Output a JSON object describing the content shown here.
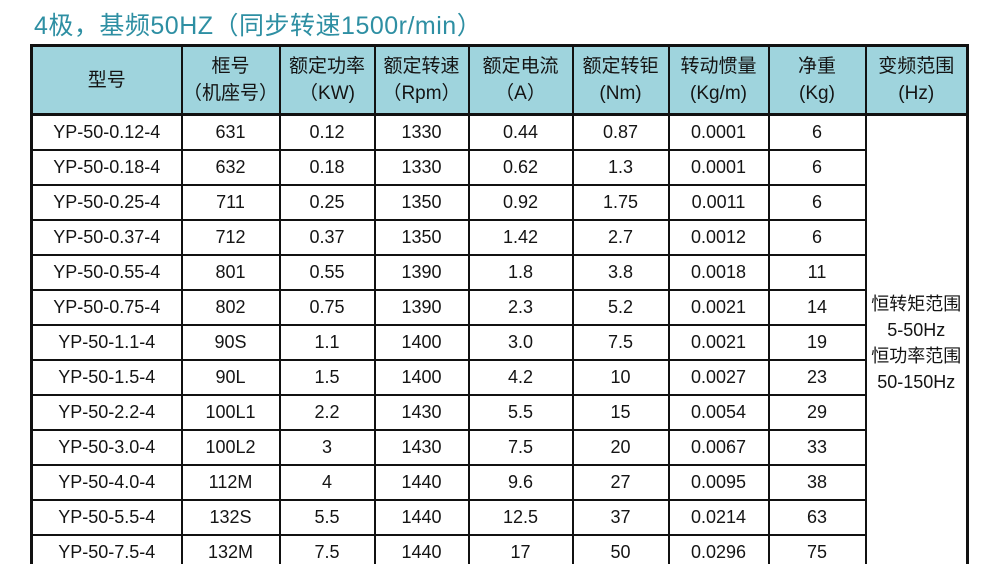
{
  "title": "4极，基频50HZ（同步转速1500r/min）",
  "colors": {
    "title_text": "#2e8fa3",
    "header_background": "#9fd4dd",
    "border": "#111111",
    "body_text": "#141414"
  },
  "table": {
    "columns": [
      {
        "label": "型号",
        "unit": ""
      },
      {
        "label": "框号",
        "unit": "（机座号）"
      },
      {
        "label": "额定功率",
        "unit": "（KW)"
      },
      {
        "label": "额定转速",
        "unit": "（Rpm）"
      },
      {
        "label": "额定电流",
        "unit": "（A）"
      },
      {
        "label": "额定转钜",
        "unit": "(Nm)"
      },
      {
        "label": "转动惯量",
        "unit": "(Kg/m)"
      },
      {
        "label": "净重",
        "unit": "(Kg)"
      },
      {
        "label": "变频范围",
        "unit": "(Hz)"
      }
    ],
    "rows": [
      [
        "YP-50-0.12-4",
        "631",
        "0.12",
        "1330",
        "0.44",
        "0.87",
        "0.0001",
        "6"
      ],
      [
        "YP-50-0.18-4",
        "632",
        "0.18",
        "1330",
        "0.62",
        "1.3",
        "0.0001",
        "6"
      ],
      [
        "YP-50-0.25-4",
        "711",
        "0.25",
        "1350",
        "0.92",
        "1.75",
        "0.0011",
        "6"
      ],
      [
        "YP-50-0.37-4",
        "712",
        "0.37",
        "1350",
        "1.42",
        "2.7",
        "0.0012",
        "6"
      ],
      [
        "YP-50-0.55-4",
        "801",
        "0.55",
        "1390",
        "1.8",
        "3.8",
        "0.0018",
        "11"
      ],
      [
        "YP-50-0.75-4",
        "802",
        "0.75",
        "1390",
        "2.3",
        "5.2",
        "0.0021",
        "14"
      ],
      [
        "YP-50-1.1-4",
        "90S",
        "1.1",
        "1400",
        "3.0",
        "7.5",
        "0.0021",
        "19"
      ],
      [
        "YP-50-1.5-4",
        "90L",
        "1.5",
        "1400",
        "4.2",
        "10",
        "0.0027",
        "23"
      ],
      [
        "YP-50-2.2-4",
        "100L1",
        "2.2",
        "1430",
        "5.5",
        "15",
        "0.0054",
        "29"
      ],
      [
        "YP-50-3.0-4",
        "100L2",
        "3",
        "1430",
        "7.5",
        "20",
        "0.0067",
        "33"
      ],
      [
        "YP-50-4.0-4",
        "112M",
        "4",
        "1440",
        "9.6",
        "27",
        "0.0095",
        "38"
      ],
      [
        "YP-50-5.5-4",
        "132S",
        "5.5",
        "1440",
        "12.5",
        "37",
        "0.0214",
        "63"
      ],
      [
        "YP-50-7.5-4",
        "132M",
        "7.5",
        "1440",
        "17",
        "50",
        "0.0296",
        "75"
      ]
    ],
    "frequency_note": {
      "lines": [
        "恒转矩范围",
        "5-50Hz",
        "恒功率范围",
        "50-150Hz"
      ]
    }
  }
}
